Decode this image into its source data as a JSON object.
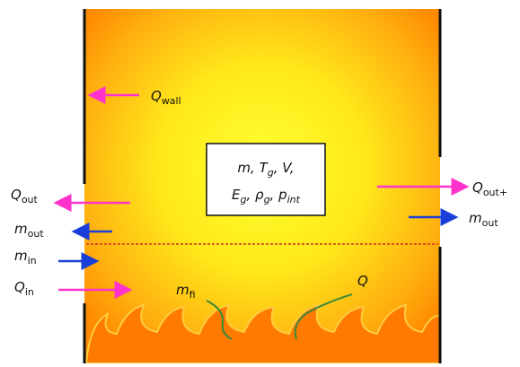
{
  "labels": {
    "q_wall": {
      "symbol": "Q",
      "sub": "wall"
    },
    "q_out_left": {
      "symbol": "Q",
      "sub": "out"
    },
    "m_out_left": {
      "symbol": "m",
      "sub": "out"
    },
    "m_in": {
      "symbol": "m",
      "sub": "in"
    },
    "q_in": {
      "symbol": "Q",
      "sub": "in"
    },
    "m_fi": {
      "symbol": "m",
      "sub": "fi"
    },
    "q": {
      "symbol": "Q"
    },
    "q_out_right": {
      "symbol": "Q",
      "sub": "out+"
    },
    "m_out_right": {
      "symbol": "m",
      "sub": "out"
    }
  },
  "state_box": {
    "lines": [
      [
        {
          "text": "m, T"
        },
        {
          "sub": "g"
        },
        {
          "text": ", V,"
        }
      ],
      [
        {
          "text": "E"
        },
        {
          "sub": "g"
        },
        {
          "text": ", ρ"
        },
        {
          "sub": "g"
        },
        {
          "text": ", p"
        },
        {
          "sub": "int"
        }
      ]
    ]
  }
}
